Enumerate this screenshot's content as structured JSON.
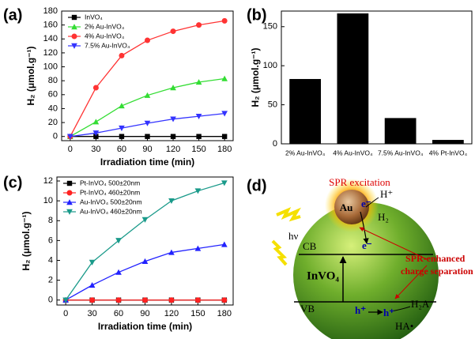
{
  "chart_data": [
    {
      "type": "line",
      "panel_label": "(a)",
      "x": [
        0,
        30,
        60,
        90,
        120,
        150,
        180
      ],
      "xlim": [
        -10,
        190
      ],
      "xticks": [
        0,
        30,
        60,
        90,
        120,
        150,
        180
      ],
      "ylim": [
        -6,
        180
      ],
      "yticks": [
        0,
        20,
        40,
        60,
        80,
        100,
        120,
        140,
        160,
        180
      ],
      "x_label": "Irradiation time (min)",
      "y_label": "H₂ (μmol.g⁻¹)",
      "legend": "upper left",
      "series": [
        {
          "name": "InVO₄",
          "color": "#000000",
          "marker": "square",
          "values": [
            0,
            0,
            0,
            0,
            0,
            0,
            0
          ]
        },
        {
          "name": "2% Au-InVO₄",
          "color": "#33dd33",
          "marker": "triangle-up",
          "values": [
            0,
            21,
            44,
            59,
            70,
            78,
            83
          ]
        },
        {
          "name": "4% Au-InVO₄",
          "color": "#ff3333",
          "marker": "circle",
          "values": [
            0,
            70,
            116,
            138,
            151,
            160,
            166
          ]
        },
        {
          "name": "7.5% Au-InVO₄",
          "color": "#3333ff",
          "marker": "triangle-down",
          "values": [
            0,
            5,
            12,
            19,
            25,
            29,
            33
          ]
        }
      ]
    },
    {
      "type": "bar",
      "panel_label": "(b)",
      "categories": [
        "2% Au-InVO₄",
        "4% Au-InVO₄",
        "7.5% Au-InVO₄",
        "4% Pt-InVO₄"
      ],
      "values": [
        83,
        167,
        33,
        5
      ],
      "color": "#000000",
      "ylim": [
        0,
        170
      ],
      "yticks": [
        0,
        50,
        100,
        150
      ],
      "y_label": "H₂ (μmol.g⁻¹)"
    },
    {
      "type": "line",
      "panel_label": "(c)",
      "x": [
        0,
        30,
        60,
        90,
        120,
        150,
        180
      ],
      "xlim": [
        -10,
        190
      ],
      "xticks": [
        0,
        30,
        60,
        90,
        120,
        150,
        180
      ],
      "ylim": [
        -0.5,
        12.4
      ],
      "yticks": [
        0,
        2,
        4,
        6,
        8,
        10,
        12
      ],
      "x_label": "Irradiation time (min)",
      "y_label": "H₂ (μmol.g⁻¹)",
      "legend": "upper left",
      "series": [
        {
          "name": "Pt-InVO₄ 500±20nm",
          "color": "#000000",
          "marker": "square",
          "values": [
            0,
            0,
            0,
            0,
            0,
            0,
            0
          ]
        },
        {
          "name": "Pt-InVO₄ 460±20nm",
          "color": "#ff2222",
          "marker": "circle",
          "values": [
            0,
            0,
            0,
            0,
            0,
            0,
            0
          ]
        },
        {
          "name": "Au-InVO₄ 500±20nm",
          "color": "#2222ff",
          "marker": "triangle-up",
          "values": [
            0,
            1.5,
            2.8,
            3.9,
            4.8,
            5.2,
            5.6
          ]
        },
        {
          "name": "Au-InVO₄ 460±20nm",
          "color": "#1a9a8a",
          "marker": "triangle-down",
          "values": [
            0,
            3.8,
            6.0,
            8.1,
            10.0,
            11.0,
            11.8
          ]
        }
      ]
    }
  ],
  "diagram": {
    "panel_label": "(d)",
    "spr_excitation": "SPR excitation",
    "au": "Au",
    "au_electron": "e⁻",
    "h_plus": "H⁺",
    "h2": "H₂",
    "light": "hν",
    "cb": "CB",
    "cb_electron": "e⁻",
    "semiconductor": "InVO₄",
    "enhanced_line1": "SPR-enhanced",
    "enhanced_line2": "charge separation",
    "vb": "VB",
    "hole1": "h⁺",
    "hole2": "h⁺",
    "h2a": "H₂A",
    "ha": "HA•"
  }
}
